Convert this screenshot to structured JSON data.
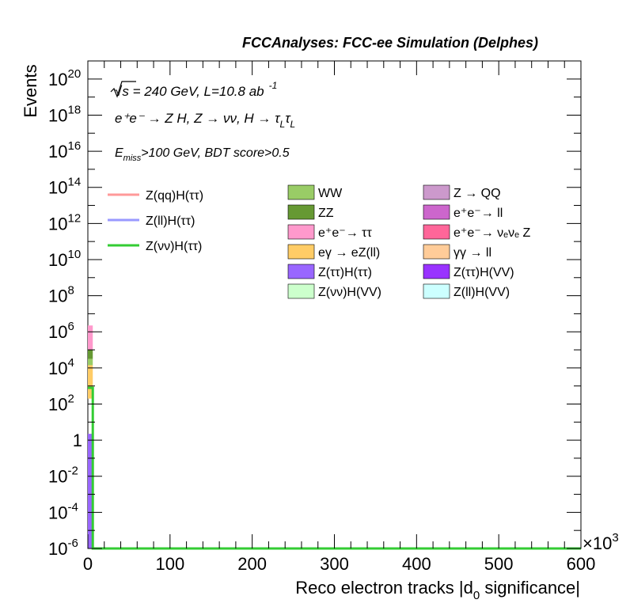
{
  "header": {
    "title": "FCCAnalyses: FCC-ee Simulation (Delphes)"
  },
  "annotations": {
    "sqrt_s_symbol": "√s",
    "energy_lumi": "= 240 GeV, L=10.8 ab",
    "lumi_exponent": "-1",
    "process": "e⁺e⁻ → Z H, Z → νν, H → τ",
    "tau_sub": "L",
    "tau2": "τ",
    "tau_sub2": "L",
    "cut_E": "E",
    "cut_sub": "miss",
    "cut_rest": ">100 GeV, BDT score>0.5"
  },
  "chart_data": {
    "type": "bar",
    "x_axis": {
      "label": "Reco electron tracks |d",
      "label_sub": "0",
      "label_end": " significance|",
      "range": [
        0,
        600
      ],
      "multiplier": "×10",
      "multiplier_exp": "3",
      "ticks": [
        "0",
        "100",
        "200",
        "300",
        "400",
        "500",
        "600"
      ]
    },
    "y_axis": {
      "label": "Events",
      "scale": "log",
      "range_exponent": [
        -6,
        21
      ],
      "ticks": [
        {
          "exp": 20,
          "base": "10",
          "sup": "20"
        },
        {
          "exp": 18,
          "base": "10",
          "sup": "18"
        },
        {
          "exp": 16,
          "base": "10",
          "sup": "16"
        },
        {
          "exp": 14,
          "base": "10",
          "sup": "14"
        },
        {
          "exp": 12,
          "base": "10",
          "sup": "12"
        },
        {
          "exp": 10,
          "base": "10",
          "sup": "10"
        },
        {
          "exp": 8,
          "base": "10",
          "sup": "8"
        },
        {
          "exp": 6,
          "base": "10",
          "sup": "6"
        },
        {
          "exp": 4,
          "base": "10",
          "sup": "4"
        },
        {
          "exp": 2,
          "base": "10",
          "sup": "2"
        },
        {
          "exp": 0,
          "base": "1",
          "sup": ""
        },
        {
          "exp": -2,
          "base": "10",
          "sup": "-2"
        },
        {
          "exp": -4,
          "base": "10",
          "sup": "-4"
        },
        {
          "exp": -6,
          "base": "10",
          "sup": "-6"
        }
      ]
    },
    "stack_bin": {
      "x_range": [
        0,
        6
      ],
      "segments": [
        {
          "name": "e⁺e⁻ → ττ",
          "color": "#ff99cc",
          "log_low": 5.0,
          "log_high": 6.35
        },
        {
          "name": "ZZ",
          "color": "#669933",
          "log_low": 4.5,
          "log_high": 5.0
        },
        {
          "name": "WW",
          "color": "#99cc66",
          "log_low": 4.15,
          "log_high": 4.5
        },
        {
          "name": "eγ → eZ(ll)",
          "color": "#ffcc66",
          "log_low": 2.3,
          "log_high": 4.15
        },
        {
          "name": "Z(ττ)H(ττ)",
          "color": "#9966ff",
          "log_low": -6.0,
          "log_high": 0.35
        }
      ]
    },
    "signal_line": {
      "name": "Z(νν)H(ττ)",
      "color": "#33cc33",
      "x_edge": 6,
      "log_value": 2.9
    },
    "legend_signals": [
      {
        "label": "Z(qq)H(ττ)",
        "color": "#ff9999"
      },
      {
        "label": "Z(ll)H(ττ)",
        "color": "#9999ff"
      },
      {
        "label": "Z(νν)H(ττ)",
        "color": "#33cc33"
      }
    ],
    "legend_backgrounds": [
      {
        "label": "WW",
        "color": "#99cc66"
      },
      {
        "label": "Z → QQ",
        "color": "#cc99cc"
      },
      {
        "label": "ZZ",
        "color": "#669933"
      },
      {
        "label": "e⁺e⁻→ ll",
        "color": "#cc66cc"
      },
      {
        "label": "e⁺e⁻→ ττ",
        "color": "#ff99cc"
      },
      {
        "label": "e⁺e⁻→ νₑνₑ Z",
        "color": "#ff6699"
      },
      {
        "label": "eγ → eZ(ll)",
        "color": "#ffcc66"
      },
      {
        "label": "γγ → ll",
        "color": "#ffcc99"
      },
      {
        "label": "Z(ττ)H(ττ)",
        "color": "#9966ff"
      },
      {
        "label": "Z(ττ)H(VV)",
        "color": "#9933ff"
      },
      {
        "label": "Z(νν)H(VV)",
        "color": "#ccffcc"
      },
      {
        "label": "Z(ll)H(VV)",
        "color": "#ccffff"
      }
    ]
  }
}
